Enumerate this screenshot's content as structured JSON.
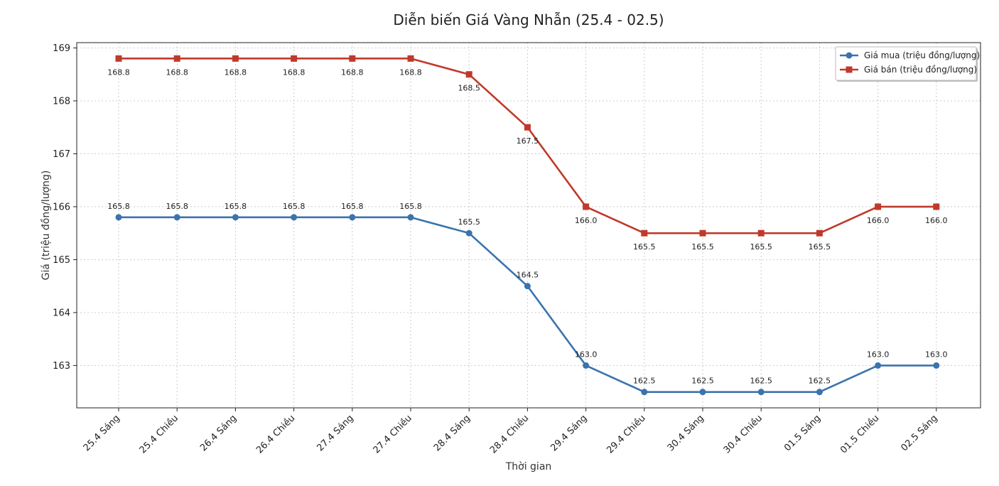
{
  "chart_data": {
    "type": "line",
    "title": "Diễn biến Giá Vàng Nhẫn (25.4 - 02.5)",
    "xlabel": "Thời gian",
    "ylabel": "Giá (triệu đồng/lượng)",
    "categories": [
      "25.4 Sáng",
      "25.4 Chiều",
      "26.4 Sáng",
      "26.4 Chiều",
      "27.4 Sáng",
      "27.4 Chiều",
      "28.4 Sáng",
      "28.4 Chiều",
      "29.4 Sáng",
      "29.4 Chiều",
      "30.4 Sáng",
      "30.4 Chiều",
      "01.5 Sáng",
      "01.5 Chiều",
      "02.5 Sáng"
    ],
    "ylim": [
      162.2,
      169.1
    ],
    "yticks": [
      163,
      164,
      165,
      166,
      167,
      168,
      169
    ],
    "grid": true,
    "legend_position": "top-right",
    "series": [
      {
        "name": "Giá mua (triệu đồng/lượng)",
        "color": "#3b73ad",
        "marker": "circle",
        "label_position": "above",
        "values": [
          165.8,
          165.8,
          165.8,
          165.8,
          165.8,
          165.8,
          165.5,
          164.5,
          163.0,
          162.5,
          162.5,
          162.5,
          162.5,
          163.0,
          163.0
        ],
        "labels": [
          "165.8",
          "165.8",
          "165.8",
          "165.8",
          "165.8",
          "165.8",
          "165.5",
          "164.5",
          "163.0",
          "162.5",
          "162.5",
          "162.5",
          "162.5",
          "163.0",
          "163.0"
        ]
      },
      {
        "name": "Giá bán (triệu đồng/lượng)",
        "color": "#c0392b",
        "marker": "square",
        "label_position": "below",
        "values": [
          168.8,
          168.8,
          168.8,
          168.8,
          168.8,
          168.8,
          168.5,
          167.5,
          166.0,
          165.5,
          165.5,
          165.5,
          165.5,
          166.0,
          166.0
        ],
        "labels": [
          "168.8",
          "168.8",
          "168.8",
          "168.8",
          "168.8",
          "168.8",
          "168.5",
          "167.5",
          "166.0",
          "165.5",
          "165.5",
          "165.5",
          "165.5",
          "166.0",
          "166.0"
        ]
      }
    ]
  }
}
